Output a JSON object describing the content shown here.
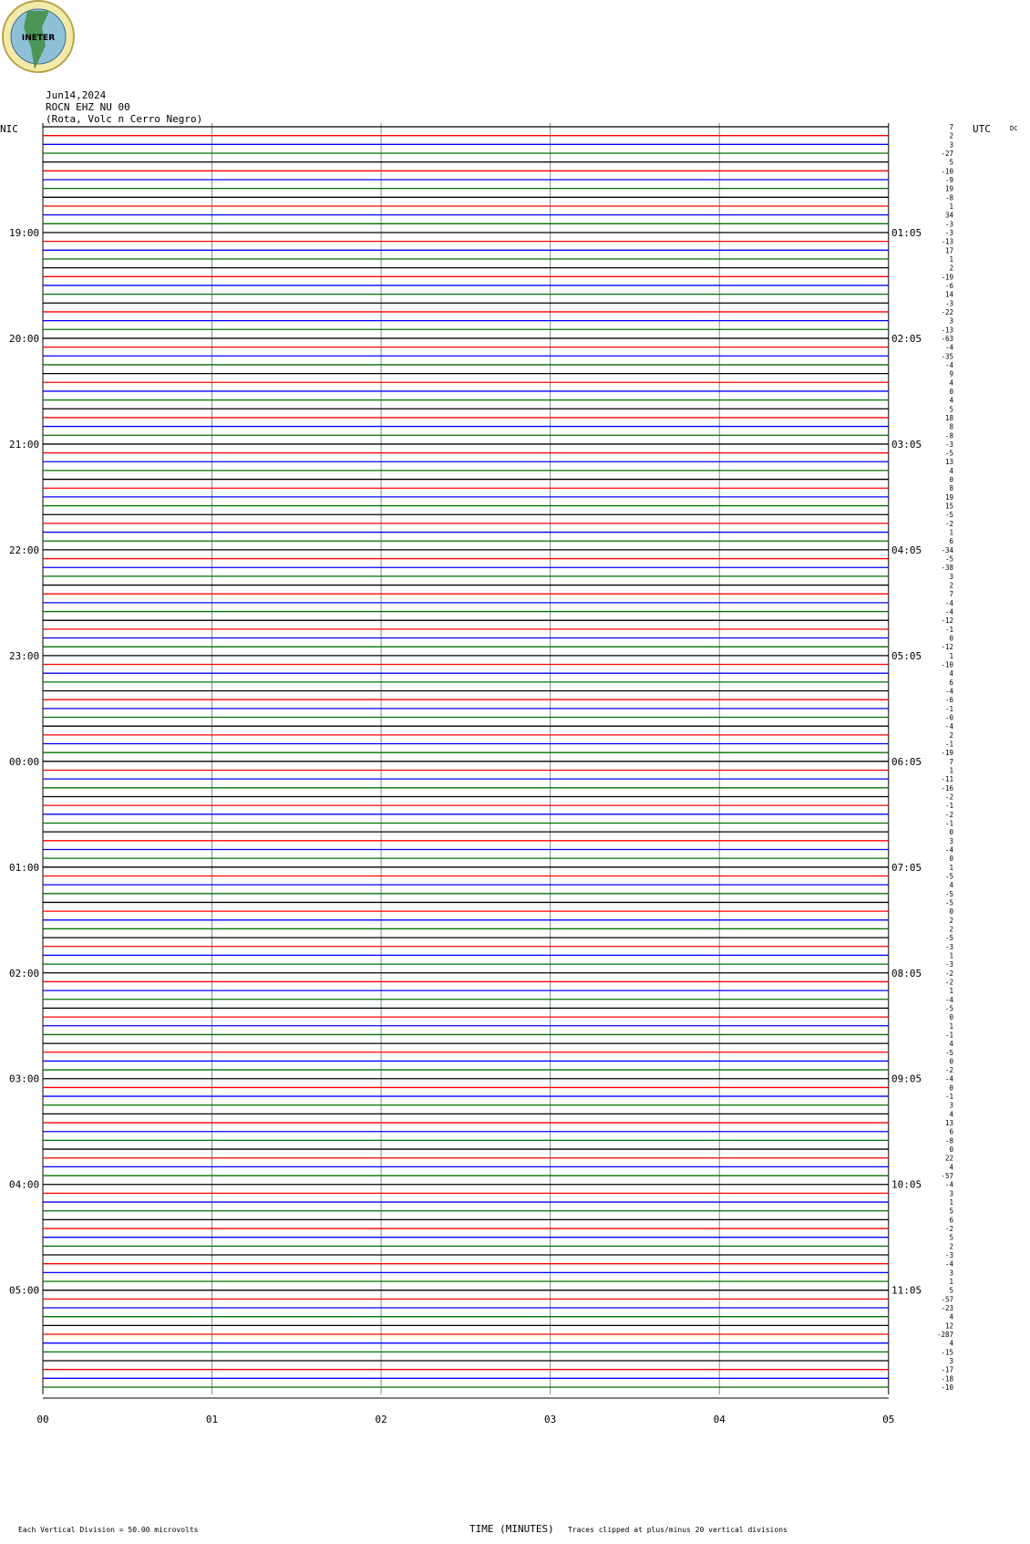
{
  "chart_data": {
    "type": "helicorder",
    "logo": "INETER",
    "title": "Jun14,2024",
    "subtitle": "ROCN EHZ NU 00",
    "location": "(Rota, Volc n Cerro Negro)",
    "left_label": "NIC",
    "right_label": "UTC",
    "dc_header": "DC",
    "colors": [
      "#000000",
      "#ff0000",
      "#0000ff",
      "#007000"
    ],
    "dc": [
      7,
      2,
      3,
      -27,
      5,
      -10,
      -9,
      19,
      -8,
      1,
      34,
      -3,
      -3,
      -13,
      17,
      1,
      2,
      -19,
      -6,
      14,
      -3,
      -22,
      3,
      -13,
      -63,
      -4,
      -35,
      -4,
      9,
      4,
      0,
      4,
      5,
      18,
      8,
      -8,
      -3,
      -5,
      13,
      4,
      0,
      8,
      19,
      15,
      -5,
      -2,
      1,
      6,
      -34,
      -5,
      -38,
      3,
      2,
      7,
      -4,
      -4,
      -12,
      -1,
      0,
      -12,
      1,
      -10,
      4,
      6,
      -4,
      -6,
      -1,
      {
        "value": 0,
        "label": "-0"
      },
      -4,
      2,
      -1,
      -19,
      7,
      1,
      -11,
      -16,
      -2,
      -1,
      -2,
      -1,
      0,
      3,
      -4,
      0,
      1,
      -5,
      4,
      -5,
      -5,
      0,
      2,
      2,
      -5,
      -3,
      1,
      -3,
      -2,
      -2,
      1,
      -4,
      -5,
      0,
      1,
      -1,
      4,
      -5,
      0,
      -2,
      -4,
      0,
      -1,
      3,
      4,
      13,
      6,
      -8,
      0,
      22,
      4,
      -57,
      -4,
      3,
      1,
      5,
      6,
      -2,
      5,
      2,
      -3,
      -4,
      3,
      1,
      5,
      -57,
      -23,
      4,
      12,
      -287,
      4,
      -15,
      3,
      -17,
      -18,
      -10
    ],
    "left_times": [
      "19:00",
      "20:00",
      "21:00",
      "22:00",
      "23:00",
      "00:00",
      "01:00",
      "02:00",
      "03:00",
      "04:00",
      "05:00"
    ],
    "right_times": [
      "01:05",
      "02:05",
      "03:05",
      "04:05",
      "05:05",
      "06:05",
      "07:05",
      "08:05",
      "09:05",
      "10:05",
      "11:05"
    ],
    "xlim": [
      0,
      5
    ],
    "xticks": [
      {
        "value": 0,
        "label": "00"
      },
      {
        "value": 1,
        "label": "01"
      },
      {
        "value": 2,
        "label": "02"
      },
      {
        "value": 3,
        "label": "03"
      },
      {
        "value": 4,
        "label": "04"
      },
      {
        "value": 5,
        "label": "05"
      }
    ],
    "xlabel": "TIME (MINUTES)",
    "scale_note": "Each Vertical Division =   50.00 microvolts",
    "clip_note": "Traces clipped at plus/minus 20 vertical divisions"
  }
}
